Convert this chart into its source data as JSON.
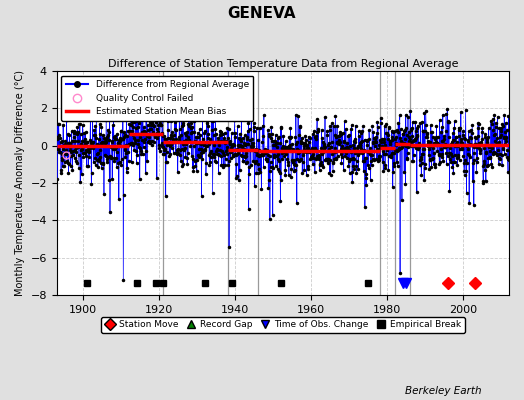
{
  "title": "GENEVA",
  "subtitle": "Difference of Station Temperature Data from Regional Average",
  "ylabel": "Monthly Temperature Anomaly Difference (°C)",
  "xlim": [
    1893,
    2012
  ],
  "ylim": [
    -8,
    4
  ],
  "yticks": [
    -8,
    -6,
    -4,
    -2,
    0,
    2,
    4
  ],
  "xticks": [
    1900,
    1920,
    1940,
    1960,
    1980,
    2000
  ],
  "bg_color": "#e0e0e0",
  "data_line_color": "#0000ff",
  "bias_color": "#ff0000",
  "annotation": "Berkeley Earth",
  "seed": 42,
  "start_year": 1893,
  "end_year": 2011,
  "vertical_lines_gray": [
    1921,
    1938,
    1946,
    1978,
    1982,
    1986
  ],
  "empirical_breaks": [
    1901,
    1914,
    1919,
    1921,
    1932,
    1939,
    1952,
    1975
  ],
  "time_of_obs_changes": [
    1984,
    1985
  ],
  "station_moves": [
    1996,
    2003
  ],
  "qc_failed": [
    1895.5
  ],
  "bias_segments": [
    {
      "start": 1893,
      "end": 1912,
      "value": 0.0
    },
    {
      "start": 1912,
      "end": 1921,
      "value": 0.65
    },
    {
      "start": 1921,
      "end": 1938,
      "value": 0.2
    },
    {
      "start": 1938,
      "end": 1946,
      "value": -0.2
    },
    {
      "start": 1946,
      "end": 1978,
      "value": -0.3
    },
    {
      "start": 1978,
      "end": 1982,
      "value": -0.1
    },
    {
      "start": 1982,
      "end": 1986,
      "value": 0.1
    },
    {
      "start": 1986,
      "end": 2012,
      "value": 0.05
    }
  ]
}
